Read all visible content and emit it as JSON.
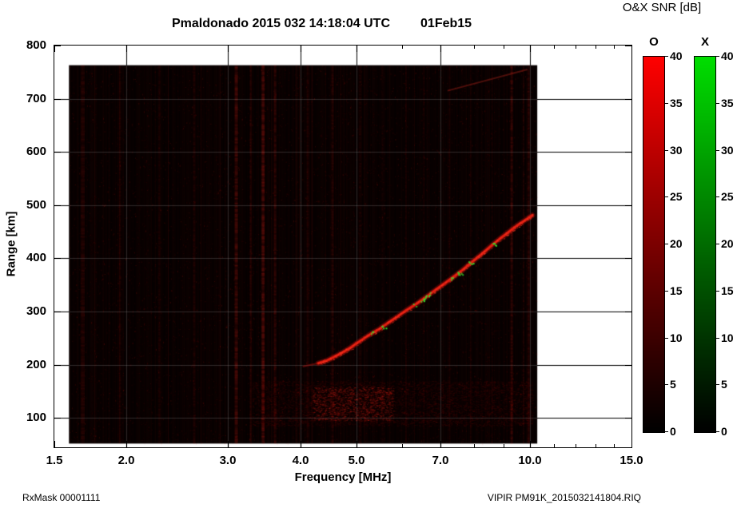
{
  "title": {
    "main": "Pmaldonado 2015 032 14:18:04 UTC",
    "date": "01Feb15"
  },
  "colorbar_header": "O&X SNR [dB]",
  "axes": {
    "x_label": "Frequency [MHz]",
    "y_label": "Range [km]"
  },
  "footer": {
    "left": "RxMask 00001111",
    "right": "VIPIR  PM91K_2015032141804.RIQ"
  },
  "colorbars": [
    {
      "name": "O",
      "top_color": "#ff0000",
      "bottom_color": "#000000",
      "ticks": [
        0,
        5,
        10,
        15,
        20,
        25,
        30,
        35,
        40
      ]
    },
    {
      "name": "X",
      "top_color": "#00dd00",
      "bottom_color": "#000000",
      "ticks": [
        0,
        5,
        10,
        15,
        20,
        25,
        30,
        35,
        40
      ]
    }
  ],
  "chart_data": {
    "type": "heatmap",
    "title": "Pmaldonado 2015 032 14:18:04 UTC 01Feb15",
    "xlabel": "Frequency [MHz]",
    "ylabel": "Range [km]",
    "x_scale": "log",
    "xlim": [
      1.5,
      15
    ],
    "ylim": [
      45,
      800
    ],
    "x_ticks": [
      1.5,
      2,
      3,
      4,
      5,
      7,
      10,
      15
    ],
    "x_tick_labels": [
      "1.5",
      "2.0",
      "3.0",
      "4.0",
      "5.0",
      "7.0",
      "10.0",
      "15.0"
    ],
    "x_minor_ticks": [
      6,
      8,
      9,
      11,
      12,
      13,
      14
    ],
    "y_ticks": [
      100,
      200,
      300,
      400,
      500,
      600,
      700,
      800
    ],
    "colorbar": {
      "label": "O&X SNR [dB]",
      "range": [
        0,
        40
      ],
      "ticks": [
        0,
        5,
        10,
        15,
        20,
        25,
        30,
        35,
        40
      ]
    },
    "background": "#050000",
    "grid": true,
    "data_extent": {
      "f_mhz": [
        1.59,
        10.3
      ],
      "range_km": [
        52,
        763
      ]
    },
    "echo_trace_o_mode": [
      [
        4.05,
        197
      ],
      [
        4.3,
        203
      ],
      [
        4.45,
        208
      ],
      [
        4.6,
        216
      ],
      [
        4.75,
        224
      ],
      [
        4.9,
        233
      ],
      [
        5.1,
        246
      ],
      [
        5.3,
        258
      ],
      [
        5.5,
        268
      ],
      [
        5.7,
        280
      ],
      [
        5.9,
        291
      ],
      [
        6.1,
        302
      ],
      [
        6.35,
        314
      ],
      [
        6.6,
        327
      ],
      [
        6.85,
        340
      ],
      [
        7.1,
        352
      ],
      [
        7.35,
        364
      ],
      [
        7.6,
        376
      ],
      [
        7.85,
        389
      ],
      [
        8.1,
        401
      ],
      [
        8.35,
        413
      ],
      [
        8.6,
        425
      ],
      [
        8.85,
        436
      ],
      [
        9.1,
        446
      ],
      [
        9.35,
        456
      ],
      [
        9.6,
        465
      ],
      [
        9.85,
        473
      ],
      [
        10.1,
        481
      ]
    ],
    "x_mode_flecks": [
      [
        5.35,
        260
      ],
      [
        5.55,
        270
      ],
      [
        5.62,
        272
      ],
      [
        6.3,
        312
      ],
      [
        6.5,
        322
      ],
      [
        6.62,
        328
      ],
      [
        6.72,
        333
      ],
      [
        7.3,
        362
      ],
      [
        7.5,
        371
      ],
      [
        7.58,
        374
      ],
      [
        7.9,
        392
      ],
      [
        8.65,
        427
      ]
    ],
    "rfi_stripes": [
      {
        "f": 1.68,
        "a": 0.1,
        "w": 5
      },
      {
        "f": 1.95,
        "a": 0.07,
        "w": 3
      },
      {
        "f": 2.28,
        "a": 0.06,
        "w": 3
      },
      {
        "f": 2.62,
        "a": 0.08,
        "w": 3
      },
      {
        "f": 3.1,
        "a": 0.22,
        "w": 4
      },
      {
        "f": 3.28,
        "a": 0.12,
        "w": 2
      },
      {
        "f": 3.45,
        "a": 0.25,
        "w": 4
      },
      {
        "f": 3.62,
        "a": 0.15,
        "w": 3
      },
      {
        "f": 4.12,
        "a": 0.08,
        "w": 3
      },
      {
        "f": 4.55,
        "a": 0.12,
        "w": 3
      },
      {
        "f": 5.08,
        "a": 0.07,
        "w": 3
      },
      {
        "f": 5.55,
        "a": 0.06,
        "w": 2
      },
      {
        "f": 6.1,
        "a": 0.06,
        "w": 2
      },
      {
        "f": 6.55,
        "a": 0.07,
        "w": 2
      },
      {
        "f": 7.25,
        "a": 0.06,
        "w": 2
      },
      {
        "f": 7.9,
        "a": 0.06,
        "w": 2
      },
      {
        "f": 8.6,
        "a": 0.07,
        "w": 2
      },
      {
        "f": 9.3,
        "a": 0.18,
        "w": 3
      },
      {
        "f": 9.75,
        "a": 0.1,
        "w": 2
      },
      {
        "f": 9.95,
        "a": 0.12,
        "w": 3
      }
    ],
    "noise_band": {
      "f_mhz": [
        3.3,
        10.1
      ],
      "range_km": [
        85,
        170
      ],
      "hotspot_f_mhz": [
        4.2,
        5.8
      ],
      "hotspot_range_km": [
        95,
        160
      ]
    },
    "faint_streak": [
      [
        7.2,
        715
      ],
      [
        9.9,
        755
      ]
    ],
    "trace_color": "#d01510",
    "fleck_color": "#2cd42c"
  }
}
